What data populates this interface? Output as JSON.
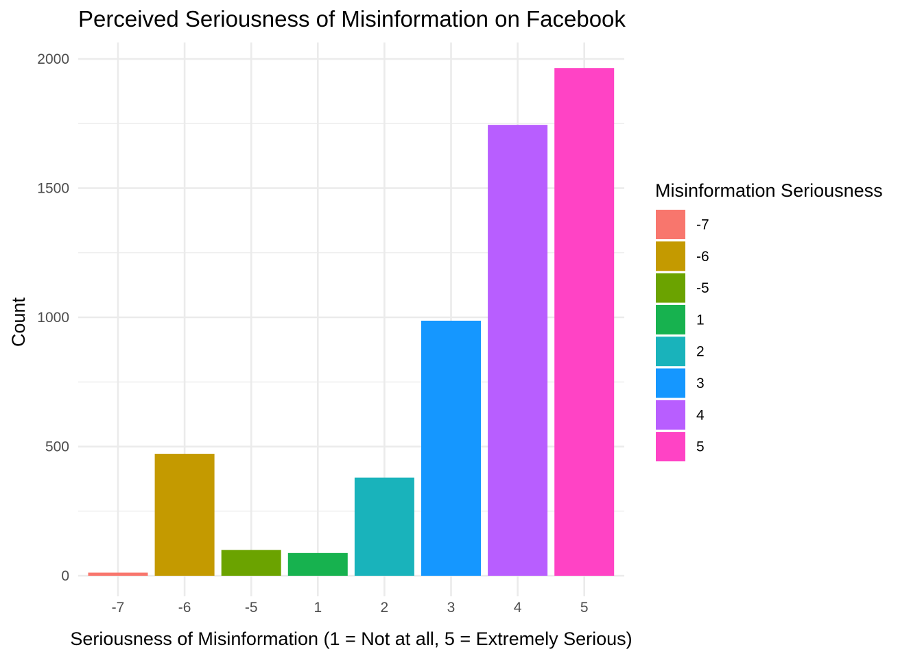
{
  "chart_data": {
    "type": "bar",
    "title": "Perceived Seriousness of Misinformation on Facebook",
    "xlabel": "Seriousness of Misinformation (1 = Not at all, 5 = Extremely Serious)",
    "ylabel": "Count",
    "categories": [
      "-7",
      "-6",
      "-5",
      "1",
      "2",
      "3",
      "4",
      "5"
    ],
    "values": [
      12,
      472,
      100,
      88,
      380,
      987,
      1745,
      1965
    ],
    "colors": [
      "#F8766D",
      "#C49A00",
      "#6BA300",
      "#17B24F",
      "#19B3BB",
      "#1597FF",
      "#B85EFF",
      "#FF43C5"
    ],
    "ylim": [
      0,
      2000
    ],
    "yticks": [
      0,
      500,
      1000,
      1500,
      2000
    ],
    "yticks_labels": [
      "0",
      "500",
      "1000",
      "1500",
      "2000"
    ],
    "grid": true,
    "legend": {
      "title": "Misinformation Seriousness",
      "placement": "right",
      "entries": [
        "-7",
        "-6",
        "-5",
        "1",
        "2",
        "3",
        "4",
        "5"
      ]
    }
  }
}
